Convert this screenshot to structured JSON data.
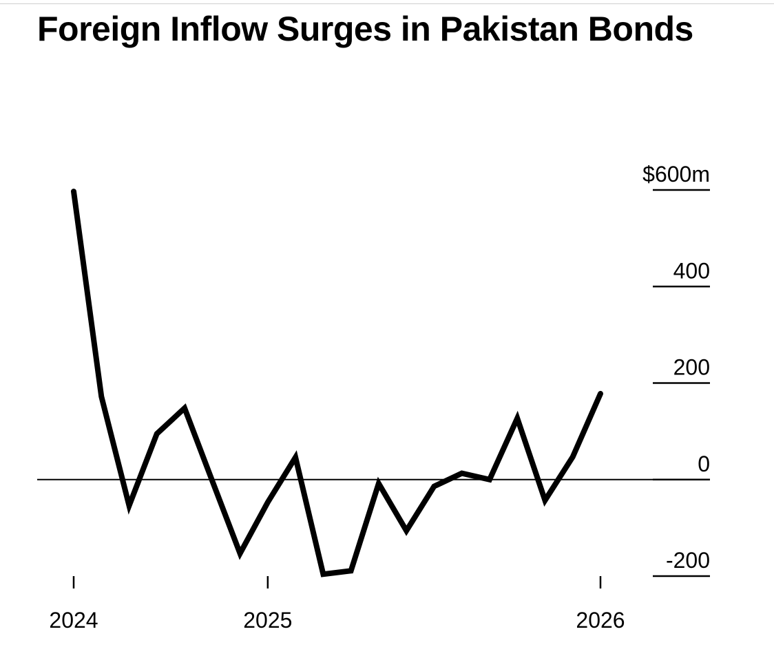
{
  "chart_data": {
    "type": "line",
    "title": "Foreign Inflow Surges in Pakistan Bonds",
    "xlabel": "",
    "ylabel": "",
    "y_ticks": [
      {
        "value": 600,
        "label": "$600m"
      },
      {
        "value": 400,
        "label": "400"
      },
      {
        "value": 200,
        "label": "200"
      },
      {
        "value": 0,
        "label": "0"
      },
      {
        "value": -200,
        "label": "-200"
      }
    ],
    "ylim": [
      -200,
      600
    ],
    "x_ticks": [
      {
        "value": 0,
        "label": "2024"
      },
      {
        "value": 7,
        "label": "2025"
      },
      {
        "value": 19,
        "label": "2026"
      }
    ],
    "xlim": [
      0,
      19
    ],
    "grid": false,
    "zero_line": true,
    "series": [
      {
        "color": "#000000",
        "points": [
          {
            "x": 0,
            "y": 597
          },
          {
            "x": 1,
            "y": 172
          },
          {
            "x": 2,
            "y": -54
          },
          {
            "x": 3,
            "y": 95
          },
          {
            "x": 4,
            "y": 148
          },
          {
            "x": 5,
            "y": -3
          },
          {
            "x": 6,
            "y": -153
          },
          {
            "x": 7,
            "y": -47
          },
          {
            "x": 8,
            "y": 46
          },
          {
            "x": 9,
            "y": -196
          },
          {
            "x": 10,
            "y": -189
          },
          {
            "x": 11,
            "y": -8
          },
          {
            "x": 12,
            "y": -106
          },
          {
            "x": 13,
            "y": -14
          },
          {
            "x": 14,
            "y": 13
          },
          {
            "x": 15,
            "y": 0
          },
          {
            "x": 16,
            "y": 127
          },
          {
            "x": 17,
            "y": -43
          },
          {
            "x": 18,
            "y": 47
          },
          {
            "x": 19,
            "y": 178
          }
        ]
      }
    ]
  }
}
